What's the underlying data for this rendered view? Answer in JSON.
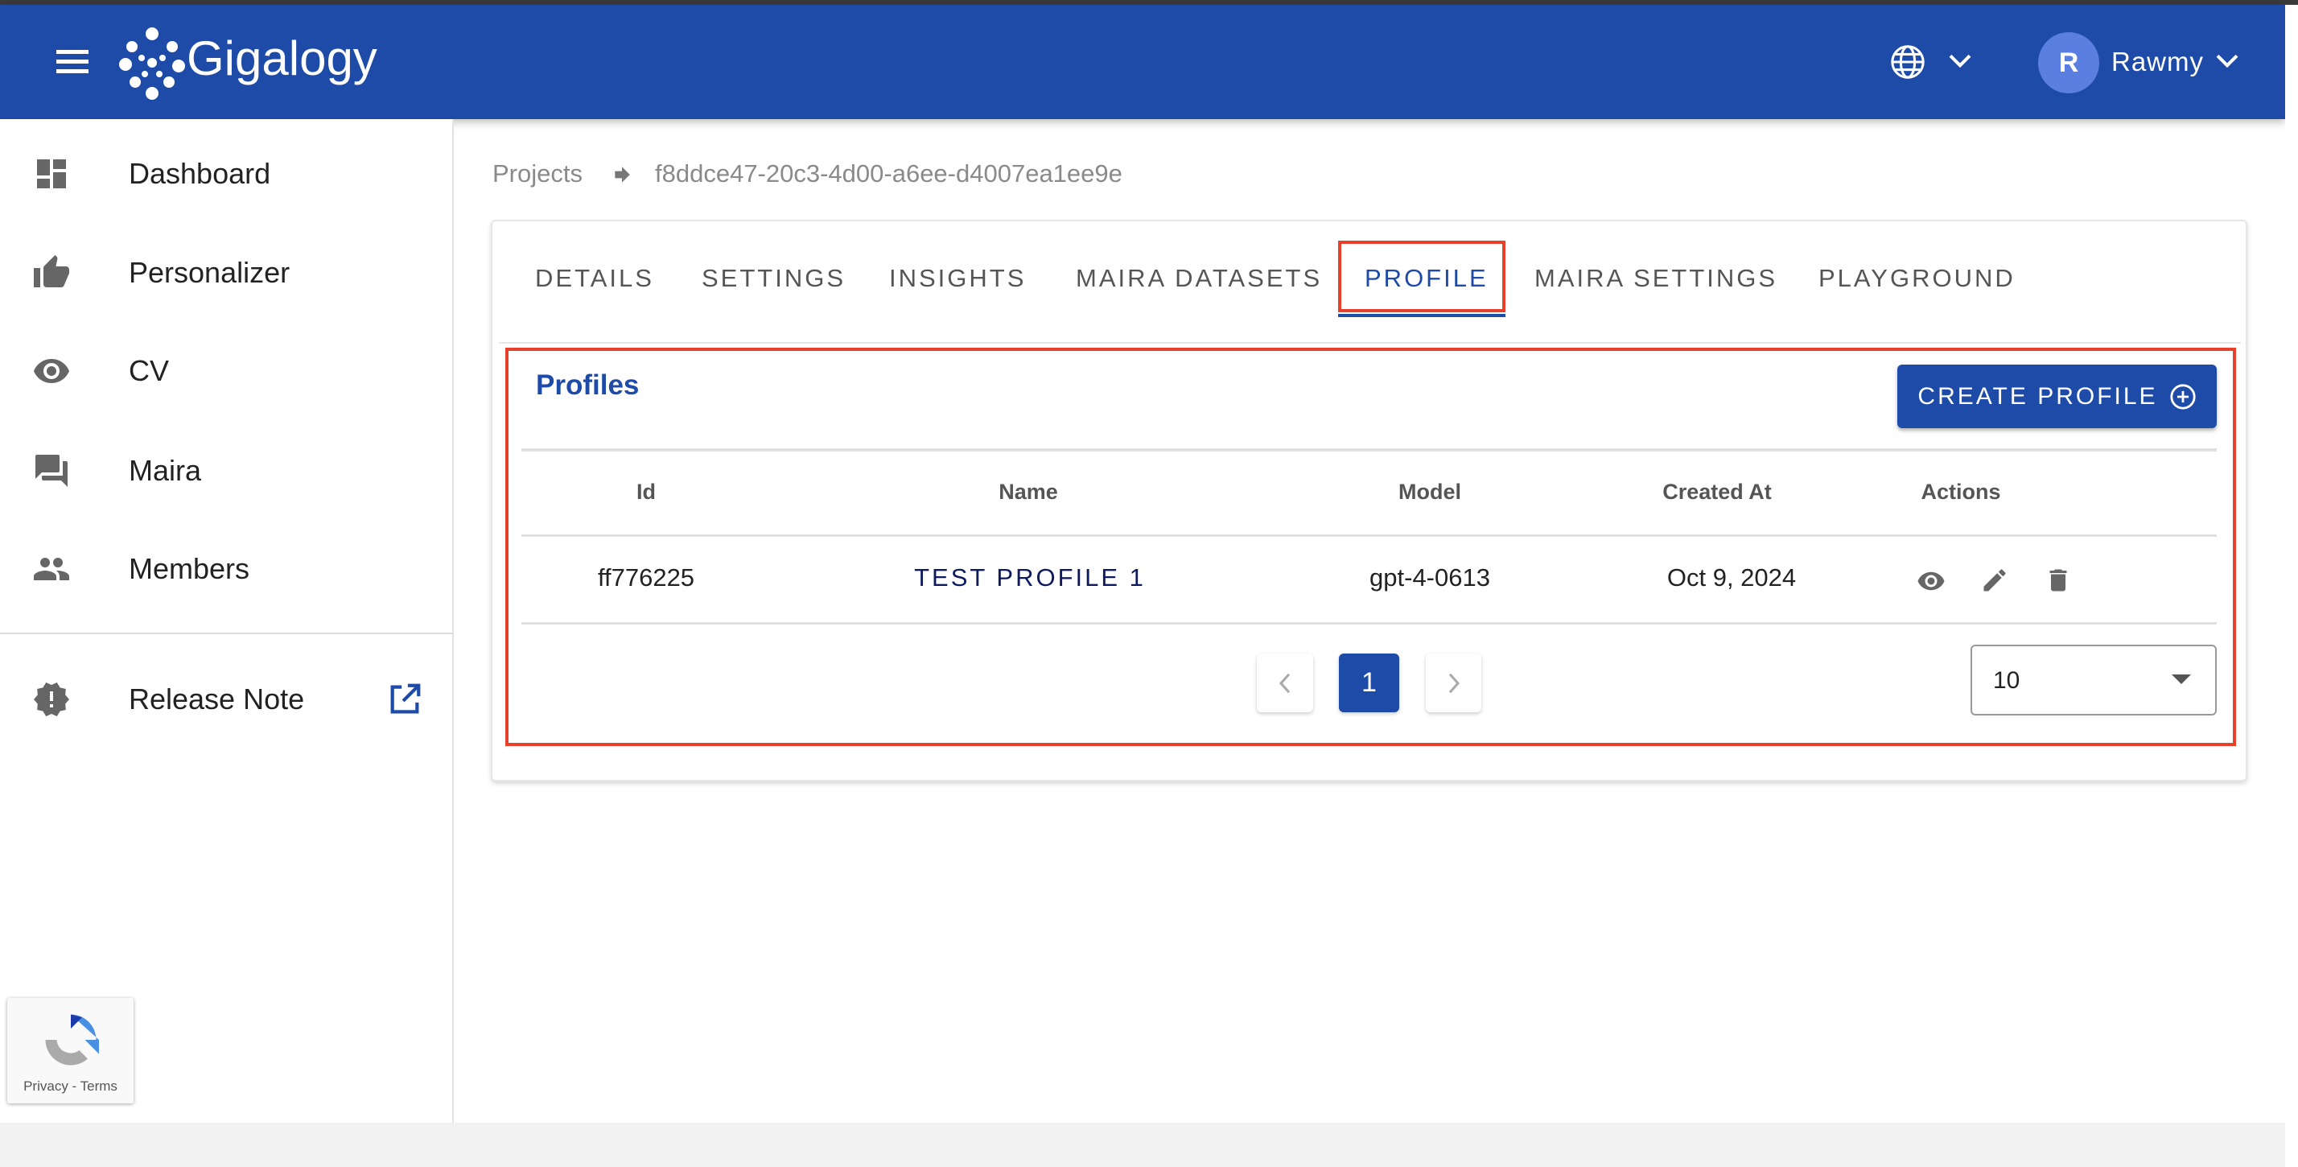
{
  "header": {
    "brand": "Gigalogy",
    "user_initial": "R",
    "user_name": "Rawmy",
    "accent": "#1e4ba8"
  },
  "sidebar": {
    "items": [
      {
        "label": "Dashboard",
        "icon": "dashboard-icon"
      },
      {
        "label": "Personalizer",
        "icon": "thumb-up-icon"
      },
      {
        "label": "CV",
        "icon": "eye-icon"
      },
      {
        "label": "Maira",
        "icon": "chat-icon"
      },
      {
        "label": "Members",
        "icon": "people-icon"
      }
    ],
    "release_note": "Release Note"
  },
  "recaptcha": {
    "text": "Privacy - Terms"
  },
  "breadcrumb": {
    "root": "Projects",
    "current": "f8ddce47-20c3-4d00-a6ee-d4007ea1ee9e"
  },
  "tabs": [
    "DETAILS",
    "SETTINGS",
    "INSIGHTS",
    "MAIRA DATASETS",
    "PROFILE",
    "MAIRA SETTINGS",
    "PLAYGROUND"
  ],
  "active_tab": "PROFILE",
  "profiles": {
    "title": "Profiles",
    "create_label": "CREATE PROFILE",
    "columns": [
      "Id",
      "Name",
      "Model",
      "Created At",
      "Actions"
    ],
    "rows": [
      {
        "id": "ff776225",
        "name": "TEST PROFILE 1",
        "model": "gpt-4-0613",
        "created_at": "Oct 9, 2024"
      }
    ],
    "page": "1",
    "per_page": "10"
  }
}
